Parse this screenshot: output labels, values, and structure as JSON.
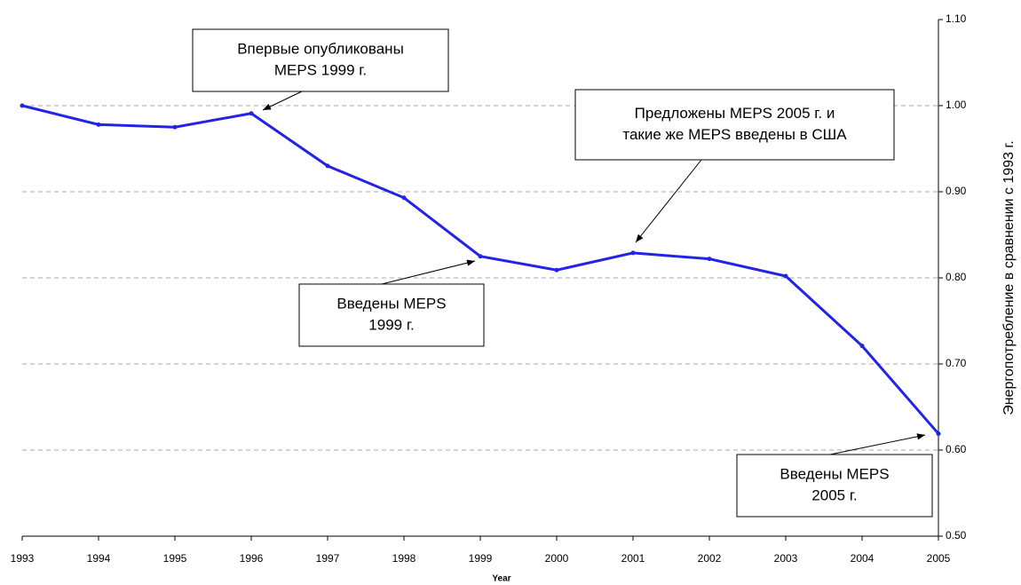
{
  "chart_data": {
    "type": "line",
    "xlabel": "Year",
    "ylabel": "Энергопотребление в сравнении с 1993 г.",
    "x": [
      1993,
      1994,
      1995,
      1996,
      1997,
      1998,
      1999,
      2000,
      2001,
      2002,
      2003,
      2004,
      2005
    ],
    "xlim": [
      1993,
      2005
    ],
    "series": [
      {
        "color": "#2323e8",
        "values": [
          1.0,
          0.978,
          0.975,
          0.991,
          0.93,
          0.893,
          0.825,
          0.809,
          0.829,
          0.822,
          0.802,
          0.721,
          0.619
        ]
      }
    ],
    "ylim": [
      0.5,
      1.1
    ],
    "yticks": [
      {
        "value": 0.5,
        "label": "0.50"
      },
      {
        "value": 0.6,
        "label": "0.60"
      },
      {
        "value": 0.7,
        "label": "0.70"
      },
      {
        "value": 0.8,
        "label": "0.80"
      },
      {
        "value": 0.9,
        "label": "0.90"
      },
      {
        "value": 1.0,
        "label": "1.00"
      },
      {
        "value": 1.1,
        "label": "1.10"
      }
    ],
    "grid": true,
    "annotations": [
      {
        "lines": [
          "Впервые опубликованы",
          "MEPS 1999 г."
        ]
      },
      {
        "lines": [
          "Предложены MEPS 2005 г. и",
          "такие же MEPS введены в США"
        ]
      },
      {
        "lines": [
          "Введены MEPS",
          "1999 г."
        ]
      },
      {
        "lines": [
          "Введены MEPS",
          "2005 г."
        ]
      }
    ]
  }
}
